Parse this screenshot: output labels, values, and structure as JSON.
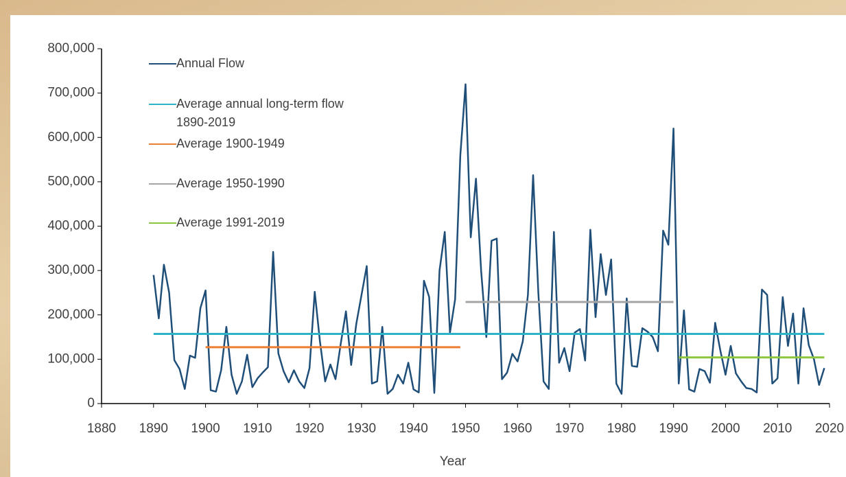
{
  "chart_data": {
    "type": "line",
    "x_label": "Year",
    "xlim": [
      1880,
      2020
    ],
    "xticks": [
      1880,
      1890,
      1900,
      1910,
      1920,
      1930,
      1940,
      1950,
      1960,
      1970,
      1980,
      1990,
      2000,
      2010,
      2020
    ],
    "ylim": [
      0,
      800000
    ],
    "yticks": [
      0,
      {
        "value": 100000,
        "label": "100,000"
      },
      {
        "value": 200000,
        "label": "200,000"
      },
      {
        "value": 300000,
        "label": "300,000"
      },
      {
        "value": 400000,
        "label": "400,000"
      },
      {
        "value": 500000,
        "label": "500,000"
      },
      {
        "value": 600000,
        "label": "600,000"
      },
      {
        "value": 700000,
        "label": "700,000"
      },
      {
        "value": 800000,
        "label": "800,000"
      }
    ],
    "grid": false,
    "x": [
      1890,
      1891,
      1892,
      1893,
      1894,
      1895,
      1896,
      1897,
      1898,
      1899,
      1900,
      1901,
      1902,
      1903,
      1904,
      1905,
      1906,
      1907,
      1908,
      1909,
      1910,
      1911,
      1912,
      1913,
      1914,
      1915,
      1916,
      1917,
      1918,
      1919,
      1920,
      1921,
      1922,
      1923,
      1924,
      1925,
      1926,
      1927,
      1928,
      1929,
      1930,
      1931,
      1932,
      1933,
      1934,
      1935,
      1936,
      1937,
      1938,
      1939,
      1940,
      1941,
      1942,
      1943,
      1944,
      1945,
      1946,
      1947,
      1948,
      1949,
      1950,
      1951,
      1952,
      1953,
      1954,
      1955,
      1956,
      1957,
      1958,
      1959,
      1960,
      1961,
      1962,
      1963,
      1964,
      1965,
      1966,
      1967,
      1968,
      1969,
      1970,
      1971,
      1972,
      1973,
      1974,
      1975,
      1976,
      1977,
      1978,
      1979,
      1980,
      1981,
      1982,
      1983,
      1984,
      1985,
      1986,
      1987,
      1988,
      1989,
      1990,
      1991,
      1992,
      1993,
      1994,
      1995,
      1996,
      1997,
      1998,
      1999,
      2000,
      2001,
      2002,
      2003,
      2004,
      2005,
      2006,
      2007,
      2008,
      2009,
      2010,
      2011,
      2012,
      2013,
      2014,
      2015,
      2016,
      2017,
      2018,
      2019
    ],
    "series": [
      {
        "name": "Annual Flow",
        "color": "#1f4e79",
        "values": [
          290000,
          192000,
          313000,
          250000,
          98000,
          78000,
          33000,
          108000,
          103000,
          215000,
          255000,
          30000,
          27000,
          75000,
          173000,
          65000,
          22000,
          50000,
          110000,
          37000,
          57000,
          70000,
          82000,
          342000,
          113000,
          73000,
          48000,
          75000,
          50000,
          35000,
          80000,
          252000,
          140000,
          50000,
          88000,
          55000,
          135000,
          208000,
          87000,
          180000,
          245000,
          310000,
          45000,
          50000,
          173000,
          22000,
          33000,
          65000,
          45000,
          92000,
          32000,
          25000,
          277000,
          240000,
          24000,
          300000,
          387000,
          160000,
          235000,
          560000,
          720000,
          375000,
          507000,
          300000,
          150000,
          367000,
          372000,
          55000,
          70000,
          112000,
          95000,
          140000,
          245000,
          515000,
          250000,
          50000,
          33000,
          387000,
          92000,
          125000,
          73000,
          160000,
          168000,
          97000,
          392000,
          195000,
          337000,
          245000,
          325000,
          45000,
          22000,
          237000,
          85000,
          83000,
          170000,
          162000,
          150000,
          118000,
          390000,
          358000,
          620000,
          45000,
          210000,
          32000,
          27000,
          78000,
          73000,
          47000,
          182000,
          120000,
          65000,
          130000,
          68000,
          50000,
          35000,
          33000,
          25000,
          257000,
          245000,
          45000,
          57000,
          240000,
          130000,
          203000,
          45000,
          215000,
          132000,
          100000,
          42000,
          80000
        ]
      },
      {
        "name": "Average annual long-term flow 1890-2019",
        "color": "#2bb3c8",
        "x": [
          1890,
          2019
        ],
        "values": [
          157000,
          157000
        ]
      },
      {
        "name": "Average 1900-1949",
        "color": "#ed7d31",
        "x": [
          1900,
          1949
        ],
        "values": [
          127000,
          127000
        ]
      },
      {
        "name": "Average 1950-1990",
        "color": "#a5a5a5",
        "x": [
          1950,
          1990
        ],
        "values": [
          229000,
          229000
        ]
      },
      {
        "name": "Average 1991-2019",
        "color": "#8cc63f",
        "x": [
          1991,
          2019
        ],
        "values": [
          104000,
          104000
        ]
      }
    ]
  }
}
